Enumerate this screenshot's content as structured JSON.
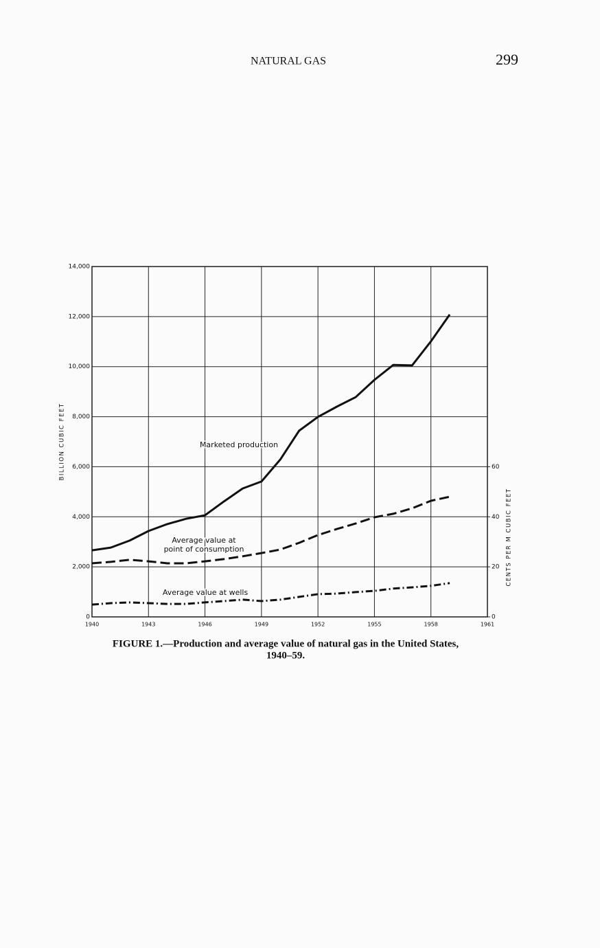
{
  "page": {
    "header": "NATURAL GAS",
    "page_number": "299",
    "caption": [
      "FIGURE 1.—Production and average value of natural gas in the United States,",
      "1940–59."
    ]
  },
  "chart_data": {
    "type": "line",
    "y_label": "BILLION CUBIC FEET",
    "y2_label": "CENTS PER M CUBIC FEET",
    "x": [
      1940,
      1941,
      1942,
      1943,
      1944,
      1945,
      1946,
      1947,
      1948,
      1949,
      1950,
      1951,
      1952,
      1953,
      1954,
      1955,
      1956,
      1957,
      1958,
      1959
    ],
    "xlim": [
      1940,
      1961
    ],
    "xticks": [
      1940,
      1943,
      1946,
      1949,
      1952,
      1955,
      1958,
      1961
    ],
    "ylim": [
      0,
      14000
    ],
    "yticks": [
      0,
      {
        "value": 2000,
        "label": "2,000"
      },
      {
        "value": 4000,
        "label": "4,000"
      },
      {
        "value": 6000,
        "label": "6,000"
      },
      {
        "value": 8000,
        "label": "8,000"
      },
      {
        "value": 10000,
        "label": "10,000"
      },
      {
        "value": 12000,
        "label": "12,000"
      },
      {
        "value": 14000,
        "label": "14,000"
      }
    ],
    "y2lim": [
      0,
      140
    ],
    "y2ticks": [
      0,
      20,
      40,
      60
    ],
    "grid": true,
    "series": [
      {
        "name": "Marketed production",
        "color": "#111111",
        "style": "solid",
        "values": [
          2660,
          2770,
          3050,
          3430,
          3710,
          3920,
          4060,
          4610,
          5130,
          5410,
          6290,
          7440,
          7990,
          8400,
          8780,
          9470,
          10070,
          10050,
          11010,
          12080
        ]
      },
      {
        "name": "Average value at point of consumption",
        "color": "#111111",
        "style": "dashed",
        "axis": "y2",
        "values": [
          21.4,
          22.0,
          22.8,
          22.2,
          21.4,
          21.4,
          22.2,
          23.1,
          24.2,
          25.5,
          26.9,
          29.6,
          32.7,
          35.1,
          37.3,
          39.8,
          41.2,
          43.4,
          46.4,
          48.0
        ]
      },
      {
        "name": "Average value at wells",
        "color": "#111111",
        "style": "dash-dot",
        "axis": "y2",
        "values": [
          4.9,
          5.5,
          5.8,
          5.5,
          5.2,
          5.2,
          5.8,
          6.3,
          6.9,
          6.3,
          6.9,
          8.0,
          9.1,
          9.3,
          9.9,
          10.4,
          11.3,
          11.8,
          12.4,
          13.5
        ]
      }
    ],
    "annotations": [
      {
        "lines": [
          "Marketed production"
        ]
      },
      {
        "lines": [
          "Average value at",
          "point of consumption"
        ]
      },
      {
        "lines": [
          "Average value at wells"
        ]
      }
    ]
  }
}
